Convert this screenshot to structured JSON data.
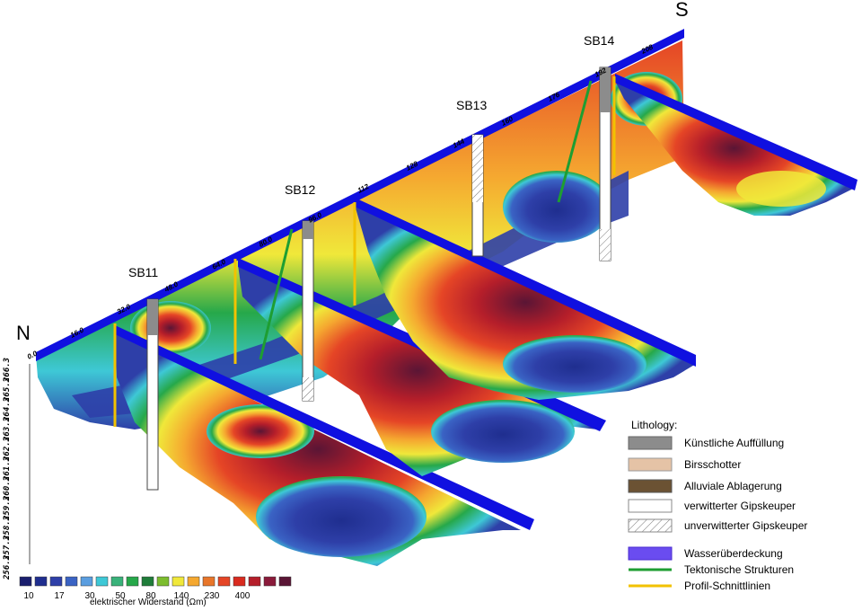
{
  "orientation": {
    "north": "N",
    "south": "S"
  },
  "boreholes": [
    "SB11",
    "SB12",
    "SB13",
    "SB14"
  ],
  "distance_labels": [
    "0.0",
    "16.0",
    "32.0",
    "48.0",
    "64.0",
    "80.0",
    "96.0",
    "112",
    "128",
    "144",
    "160",
    "176",
    "192",
    "208"
  ],
  "elevation_labels": [
    "266.3",
    "265.3",
    "264.3",
    "263.3",
    "262.3",
    "261.3",
    "260.3",
    "259.3",
    "258.3",
    "257.3",
    "256.3"
  ],
  "legend": {
    "title": "Lithology:",
    "items": [
      {
        "label": "Künstliche Auffüllung",
        "color": "#8c8c8c",
        "kind": "box"
      },
      {
        "label": "Birsschotter",
        "color": "#e5c3a6",
        "kind": "box"
      },
      {
        "label": "Alluviale Ablagerung",
        "color": "#6b5233",
        "kind": "box"
      },
      {
        "label": "verwitterter Gipskeuper",
        "color": "#ffffff",
        "kind": "box"
      },
      {
        "label": "unverwitterter Gipskeuper",
        "color": "#ffffff",
        "kind": "hatch"
      },
      {
        "label": "Wasserüberdeckung",
        "color": "#6a4cf0",
        "kind": "box"
      },
      {
        "label": "Tektonische Strukturen",
        "color": "#1e9e32",
        "kind": "line"
      },
      {
        "label": "Profil-Schnittlinien",
        "color": "#f2c200",
        "kind": "line"
      }
    ]
  },
  "colorbar": {
    "title": "elektrischer Widerstand (Ωm)",
    "colors": [
      "#1a1f6e",
      "#1f2e8f",
      "#2e3fa8",
      "#3a63c4",
      "#5b9ee0",
      "#3ec8d6",
      "#39b27a",
      "#26a84a",
      "#1f7d3a",
      "#7cbd2e",
      "#f0e83a",
      "#f5a830",
      "#e8762a",
      "#e54526",
      "#d92b1f",
      "#b51e2a",
      "#8a1a3a",
      "#5a1535"
    ],
    "ticks": [
      "10",
      "17",
      "30",
      "50",
      "80",
      "140",
      "230",
      "400"
    ]
  },
  "colors": {
    "water_band": "#1010e0",
    "tectonic": "#1e9e32",
    "section_line": "#f2c200",
    "fill_gray": "#8c8c8c"
  }
}
